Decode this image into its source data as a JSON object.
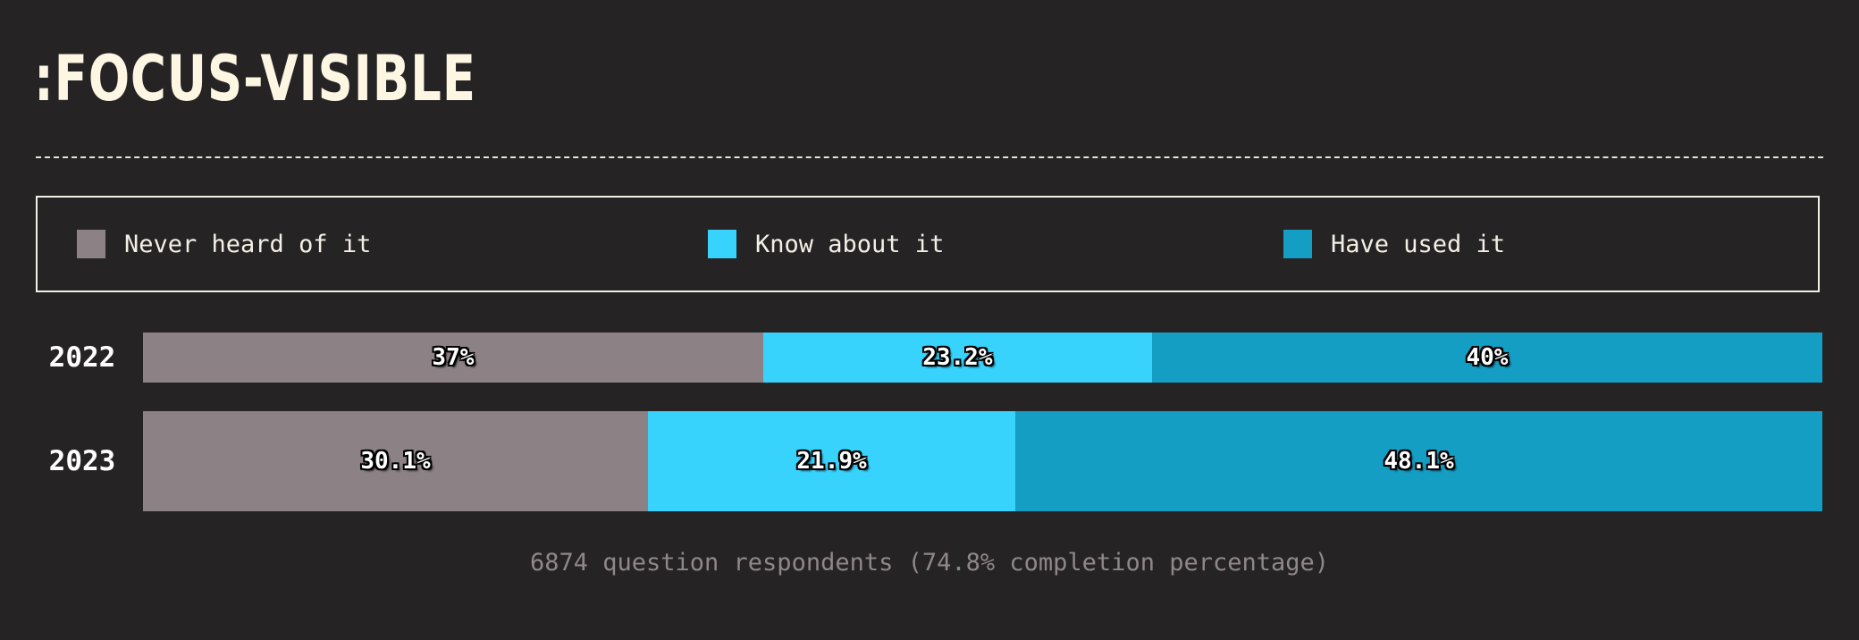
{
  "title": ":FOCUS-VISIBLE",
  "colors": {
    "background": "#262324",
    "never_heard": "#8c8285",
    "know_about": "#38d3fd",
    "have_used": "#159ec4"
  },
  "legend": [
    {
      "label": "Never heard of it",
      "color": "#8c8285"
    },
    {
      "label": "Know about it",
      "color": "#38d3fd"
    },
    {
      "label": "Have used it",
      "color": "#159ec4"
    }
  ],
  "chart_data": {
    "type": "bar",
    "orientation": "horizontal",
    "stacked": true,
    "normalized": true,
    "categories": [
      "2022",
      "2023"
    ],
    "series": [
      {
        "name": "Never heard of it",
        "values": [
          37,
          30.1
        ],
        "labels": [
          "37%",
          "30.1%"
        ]
      },
      {
        "name": "Know about it",
        "values": [
          23.2,
          21.9
        ],
        "labels": [
          "23.2%",
          "21.9%"
        ]
      },
      {
        "name": "Have used it",
        "values": [
          40,
          48.1
        ],
        "labels": [
          "40%",
          "48.1%"
        ]
      }
    ],
    "legend_position": "top"
  },
  "footer": "6874 question respondents (74.8% completion percentage)"
}
